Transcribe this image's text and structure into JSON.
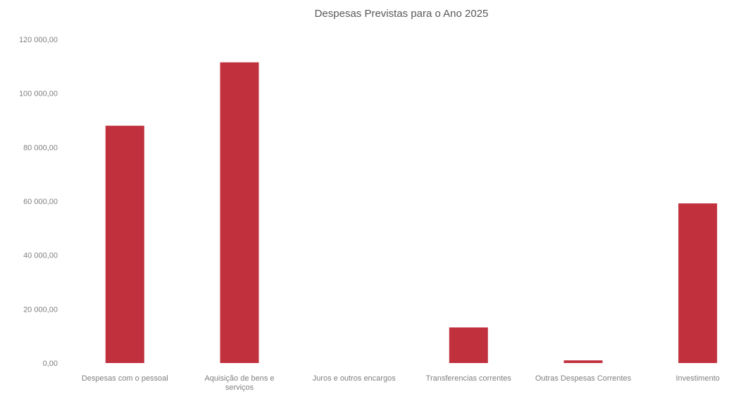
{
  "chart_data": {
    "type": "bar",
    "title": "Despesas Previstas para o Ano 2025",
    "xlabel": "",
    "ylabel": "",
    "ylim": [
      0,
      120000
    ],
    "yticks": [
      0,
      20000,
      40000,
      60000,
      80000,
      100000,
      120000
    ],
    "ytick_labels": [
      "0,00",
      "20 000,00",
      "40 000,00",
      "60 000,00",
      "80 000,00",
      "100 000,00",
      "120 000,00"
    ],
    "categories": [
      "Despesas com o pessoal",
      "Aquisição de bens e serviços",
      "Juros e outros encargos",
      "Transferencias correntes",
      "Outras Despesas Correntes",
      "Investimento"
    ],
    "values": [
      88000,
      111500,
      0,
      13200,
      1000,
      59200
    ],
    "grid": false,
    "legend": "none",
    "bar_color": "#c0303d"
  }
}
